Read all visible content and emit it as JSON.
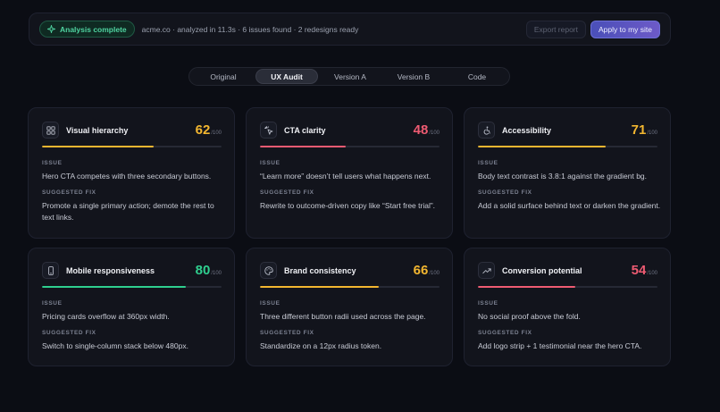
{
  "topbar": {
    "badge": "Analysis complete",
    "status": "acme.co · analyzed in 11.3s · 6 issues found · 2 redesigns ready",
    "export_label": "Export report",
    "apply_label": "Apply to my site"
  },
  "tabs": [
    {
      "label": "Original",
      "active": false
    },
    {
      "label": "UX Audit",
      "active": true
    },
    {
      "label": "Version A",
      "active": false
    },
    {
      "label": "Version B",
      "active": false
    },
    {
      "label": "Code",
      "active": false
    }
  ],
  "cards": [
    {
      "title": "Visual hierarchy",
      "icon": "grid-icon",
      "score": 62,
      "denominator": "/100",
      "color": "#f2b630",
      "issue_label": "ISSUE",
      "issue": "Hero CTA competes with three secondary buttons.",
      "fix_label": "SUGGESTED FIX",
      "fix": "Promote a single primary action; demote the rest to text links."
    },
    {
      "title": "CTA clarity",
      "icon": "cursor-click-icon",
      "score": 48,
      "denominator": "/100",
      "color": "#ee5b72",
      "issue_label": "ISSUE",
      "issue": "“Learn more” doesn’t tell users what happens next.",
      "fix_label": "SUGGESTED FIX",
      "fix": "Rewrite to outcome-driven copy like “Start free trial”."
    },
    {
      "title": "Accessibility",
      "icon": "accessibility-icon",
      "score": 71,
      "denominator": "/100",
      "color": "#f2b630",
      "issue_label": "ISSUE",
      "issue": "Body text contrast is 3.8:1 against the gradient bg.",
      "fix_label": "SUGGESTED FIX",
      "fix": "Add a solid surface behind text or darken the gradient."
    },
    {
      "title": "Mobile responsiveness",
      "icon": "smartphone-icon",
      "score": 80,
      "denominator": "/100",
      "color": "#2fcf8f",
      "issue_label": "ISSUE",
      "issue": "Pricing cards overflow at 360px width.",
      "fix_label": "SUGGESTED FIX",
      "fix": "Switch to single-column stack below 480px."
    },
    {
      "title": "Brand consistency",
      "icon": "palette-icon",
      "score": 66,
      "denominator": "/100",
      "color": "#f2b630",
      "issue_label": "ISSUE",
      "issue": "Three different button radii used across the page.",
      "fix_label": "SUGGESTED FIX",
      "fix": "Standardize on a 12px radius token."
    },
    {
      "title": "Conversion potential",
      "icon": "trending-up-icon",
      "score": 54,
      "denominator": "/100",
      "color": "#ee5b72",
      "issue_label": "ISSUE",
      "issue": "No social proof above the fold.",
      "fix_label": "SUGGESTED FIX",
      "fix": "Add logo strip + 1 testimonial near the hero CTA."
    }
  ]
}
